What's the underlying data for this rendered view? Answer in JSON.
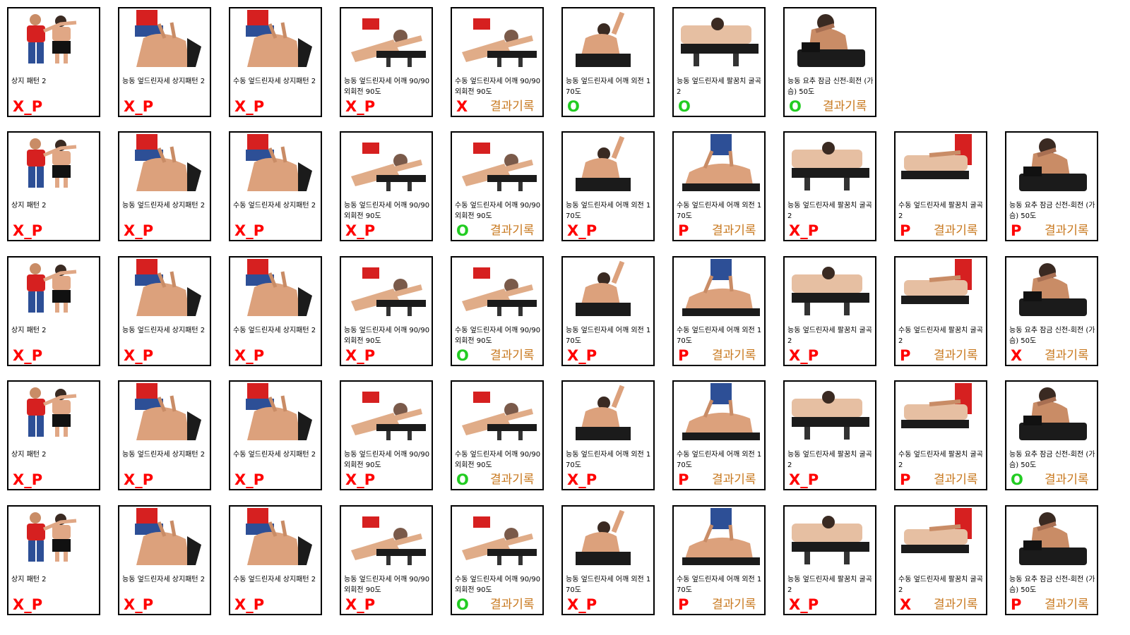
{
  "colors": {
    "fail": "#ff0000",
    "pass": "#22cc22",
    "result_link": "#c8781e"
  },
  "labels": {
    "c0": "상지 패턴 2",
    "c1": "능동 엎드린자세 상지패턴 2",
    "c2": "수동 엎드린자세 상지패턴 2",
    "c3": "능동 엎드린자세 어깨 90/90 외회전 90도",
    "c4": "수동 엎드린자세 어깨 90/90 외회전 90도",
    "c5": "능동 엎드린자세 어깨 외전 170도",
    "c6a": "능동 엎드린자세 팔꿈치 굴곡2",
    "c6b": "수동 엎드린자세 어깨 외전 170도",
    "c7a": "능동 요추 잠금 신전-회전 (가슴) 50도",
    "c7b": "능동 엎드린자세 팔꿈치 굴곡2",
    "c8": "수동 엎드린자세 팔꿈치 굴곡2",
    "c9": "능동 요추 잠금 신전-회전 (가슴) 50도"
  },
  "result_link_label": "결과기록",
  "rows": [
    {
      "cards": [
        {
          "photo": "shoulder-pattern-standing-photo",
          "caption": "c0",
          "mark": "X_P",
          "status": "fail",
          "result": false
        },
        {
          "photo": "prone-upper-pattern-photo",
          "caption": "c1",
          "mark": "X_P",
          "status": "fail",
          "result": false
        },
        {
          "photo": "prone-upper-pattern-photo",
          "caption": "c2",
          "mark": "X_P",
          "status": "fail",
          "result": false
        },
        {
          "photo": "prone-rotation-photo",
          "caption": "c3",
          "mark": "X_P",
          "status": "fail",
          "result": false
        },
        {
          "photo": "prone-rotation-photo",
          "caption": "c4",
          "mark": "X",
          "status": "fail",
          "result": true
        },
        {
          "photo": "prone-abduction-photo",
          "caption": "c5",
          "mark": "O",
          "status": "pass",
          "result": false
        },
        {
          "photo": "prone-elbow-photo",
          "caption": "c6a",
          "mark": "O",
          "status": "pass",
          "result": false
        },
        {
          "photo": "lumbar-lock-photo",
          "caption": "c7a",
          "mark": "O",
          "status": "pass",
          "result": true
        }
      ]
    },
    {
      "cards": [
        {
          "photo": "shoulder-pattern-standing-photo",
          "caption": "c0",
          "mark": "X_P",
          "status": "fail",
          "result": false
        },
        {
          "photo": "prone-upper-pattern-photo",
          "caption": "c1",
          "mark": "X_P",
          "status": "fail",
          "result": false
        },
        {
          "photo": "prone-upper-pattern-photo",
          "caption": "c2",
          "mark": "X_P",
          "status": "fail",
          "result": false
        },
        {
          "photo": "prone-rotation-photo",
          "caption": "c3",
          "mark": "X_P",
          "status": "fail",
          "result": false
        },
        {
          "photo": "prone-rotation-photo",
          "caption": "c4",
          "mark": "O",
          "status": "pass",
          "result": true
        },
        {
          "photo": "prone-abduction-photo",
          "caption": "c5",
          "mark": "X_P",
          "status": "fail",
          "result": false
        },
        {
          "photo": "passive-abduction-photo",
          "caption": "c6b",
          "mark": "P",
          "status": "fail",
          "result": true
        },
        {
          "photo": "prone-elbow-photo",
          "caption": "c7b",
          "mark": "X_P",
          "status": "fail",
          "result": false
        },
        {
          "photo": "passive-elbow-photo",
          "caption": "c8",
          "mark": "P",
          "status": "fail",
          "result": true
        },
        {
          "photo": "lumbar-lock-photo",
          "caption": "c9",
          "mark": "P",
          "status": "fail",
          "result": true
        }
      ]
    },
    {
      "cards": [
        {
          "photo": "shoulder-pattern-standing-photo",
          "caption": "c0",
          "mark": "X_P",
          "status": "fail",
          "result": false
        },
        {
          "photo": "prone-upper-pattern-photo",
          "caption": "c1",
          "mark": "X_P",
          "status": "fail",
          "result": false
        },
        {
          "photo": "prone-upper-pattern-photo",
          "caption": "c2",
          "mark": "X_P",
          "status": "fail",
          "result": false
        },
        {
          "photo": "prone-rotation-photo",
          "caption": "c3",
          "mark": "X_P",
          "status": "fail",
          "result": false
        },
        {
          "photo": "prone-rotation-photo",
          "caption": "c4",
          "mark": "O",
          "status": "pass",
          "result": true
        },
        {
          "photo": "prone-abduction-photo",
          "caption": "c5",
          "mark": "X_P",
          "status": "fail",
          "result": false
        },
        {
          "photo": "passive-abduction-photo",
          "caption": "c6b",
          "mark": "P",
          "status": "fail",
          "result": true
        },
        {
          "photo": "prone-elbow-photo",
          "caption": "c7b",
          "mark": "X_P",
          "status": "fail",
          "result": false
        },
        {
          "photo": "passive-elbow-photo",
          "caption": "c8",
          "mark": "P",
          "status": "fail",
          "result": true
        },
        {
          "photo": "lumbar-lock-photo",
          "caption": "c9",
          "mark": "X",
          "status": "fail",
          "result": true
        }
      ]
    },
    {
      "cards": [
        {
          "photo": "shoulder-pattern-standing-photo",
          "caption": "c0",
          "mark": "X_P",
          "status": "fail",
          "result": false
        },
        {
          "photo": "prone-upper-pattern-photo",
          "caption": "c1",
          "mark": "X_P",
          "status": "fail",
          "result": false
        },
        {
          "photo": "prone-upper-pattern-photo",
          "caption": "c2",
          "mark": "X_P",
          "status": "fail",
          "result": false
        },
        {
          "photo": "prone-rotation-photo",
          "caption": "c3",
          "mark": "X_P",
          "status": "fail",
          "result": false
        },
        {
          "photo": "prone-rotation-photo",
          "caption": "c4",
          "mark": "O",
          "status": "pass",
          "result": true
        },
        {
          "photo": "prone-abduction-photo",
          "caption": "c5",
          "mark": "X_P",
          "status": "fail",
          "result": false
        },
        {
          "photo": "passive-abduction-photo",
          "caption": "c6b",
          "mark": "P",
          "status": "fail",
          "result": true
        },
        {
          "photo": "prone-elbow-photo",
          "caption": "c7b",
          "mark": "X_P",
          "status": "fail",
          "result": false
        },
        {
          "photo": "passive-elbow-photo",
          "caption": "c8",
          "mark": "P",
          "status": "fail",
          "result": true
        },
        {
          "photo": "lumbar-lock-photo",
          "caption": "c9",
          "mark": "O",
          "status": "pass",
          "result": true
        }
      ]
    },
    {
      "cards": [
        {
          "photo": "shoulder-pattern-standing-photo",
          "caption": "c0",
          "mark": "X_P",
          "status": "fail",
          "result": false
        },
        {
          "photo": "prone-upper-pattern-photo",
          "caption": "c1",
          "mark": "X_P",
          "status": "fail",
          "result": false
        },
        {
          "photo": "prone-upper-pattern-photo",
          "caption": "c2",
          "mark": "X_P",
          "status": "fail",
          "result": false
        },
        {
          "photo": "prone-rotation-photo",
          "caption": "c3",
          "mark": "X_P",
          "status": "fail",
          "result": false
        },
        {
          "photo": "prone-rotation-photo",
          "caption": "c4",
          "mark": "O",
          "status": "pass",
          "result": true
        },
        {
          "photo": "prone-abduction-photo",
          "caption": "c5",
          "mark": "X_P",
          "status": "fail",
          "result": false
        },
        {
          "photo": "passive-abduction-photo",
          "caption": "c6b",
          "mark": "P",
          "status": "fail",
          "result": true
        },
        {
          "photo": "prone-elbow-photo",
          "caption": "c7b",
          "mark": "X_P",
          "status": "fail",
          "result": false
        },
        {
          "photo": "passive-elbow-photo",
          "caption": "c8",
          "mark": "X",
          "status": "fail",
          "result": true
        },
        {
          "photo": "lumbar-lock-photo",
          "caption": "c9",
          "mark": "P",
          "status": "fail",
          "result": true
        }
      ]
    }
  ]
}
